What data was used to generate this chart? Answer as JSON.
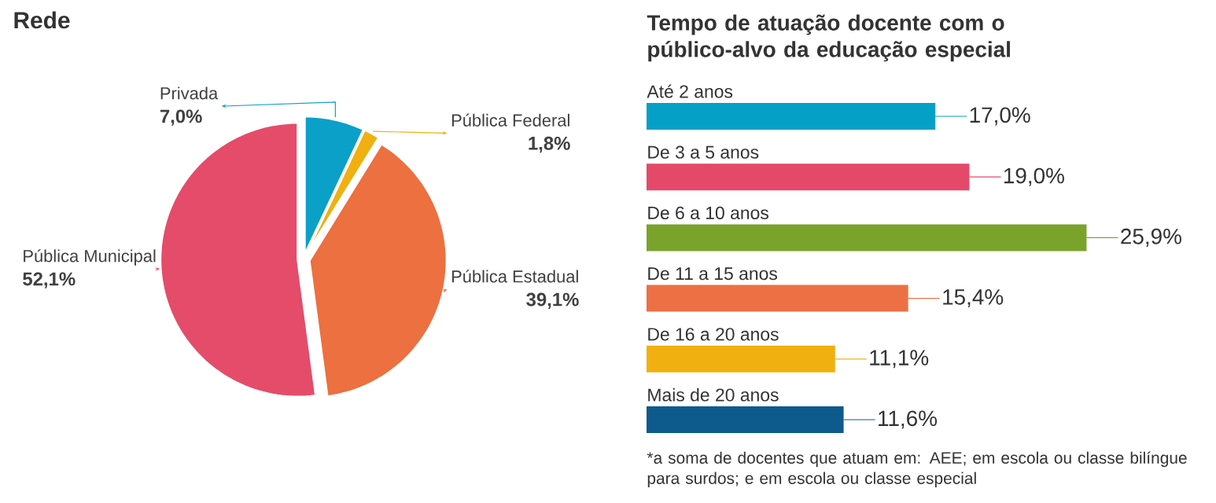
{
  "chart_data": [
    {
      "type": "pie",
      "title": "Rede",
      "categories": [
        "Privada",
        "Pública Federal",
        "Pública Estadual",
        "Pública Municipal"
      ],
      "values": [
        7.0,
        1.8,
        39.1,
        52.1
      ],
      "colors": [
        "#0aa0c8",
        "#f0b010",
        "#ec7040",
        "#e44c6a"
      ],
      "value_labels": [
        "7,0%",
        "1,8%",
        "39,1%",
        "52,1%"
      ]
    },
    {
      "type": "bar",
      "orientation": "horizontal",
      "title": "Tempo de atuação docente com o público-alvo da educação especial",
      "categories": [
        "Até 2 anos",
        "De 3 a 5 anos",
        "De 6 a 10 anos",
        "De 11 a 15 anos",
        "De 16 a 20 anos",
        "Mais de 20 anos"
      ],
      "values": [
        17.0,
        19.0,
        25.9,
        15.4,
        11.1,
        11.6
      ],
      "colors": [
        "#05a0c6",
        "#e5496a",
        "#7aa32c",
        "#ec7044",
        "#f0b010",
        "#0d5a8c"
      ],
      "value_labels": [
        "17,0%",
        "19,0%",
        "25,9%",
        "15,4%",
        "11,1%",
        "11,6%"
      ],
      "annotations": [
        "*a soma de docentes que atuam em: AEE; em escola ou classe bilíngue para surdos; e em escola ou classe especial"
      ]
    }
  ]
}
